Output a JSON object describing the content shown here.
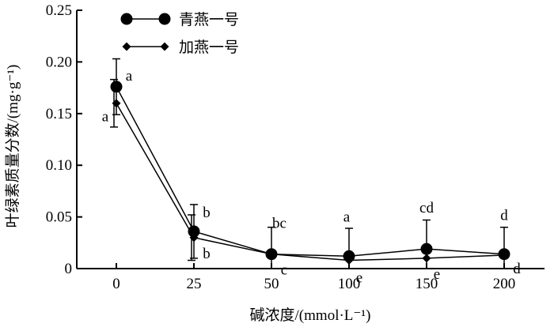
{
  "chart_data": {
    "type": "line",
    "xlabel": "碱浓度/(mmol·L⁻¹)",
    "ylabel": "叶绿素质量分数/(mg·g⁻¹)",
    "categories": [
      "0",
      "25",
      "50",
      "100",
      "150",
      "200"
    ],
    "ylim": [
      0,
      0.25
    ],
    "yticks": [
      "0",
      "0.05",
      "0.10",
      "0.15",
      "0.20",
      "0.25"
    ],
    "legend_position": "top-left",
    "series": [
      {
        "name": "青燕一号",
        "marker": "circle",
        "values": [
          0.176,
          0.036,
          0.014,
          0.012,
          0.019,
          0.014
        ],
        "errors": [
          0.027,
          0.026,
          0.026,
          0.027,
          0.028,
          0.026
        ],
        "labels": [
          "a",
          "b",
          "bc",
          "a",
          "cd",
          "d"
        ]
      },
      {
        "name": "加燕一号",
        "marker": "diamond",
        "values": [
          0.16,
          0.03,
          0.014,
          0.008,
          0.01,
          0.013
        ],
        "errors": [
          0.023,
          0.022,
          0.0,
          0.0,
          0.0,
          0.0
        ],
        "labels": [
          "a",
          "b",
          "c",
          "e",
          "e",
          "d"
        ]
      }
    ]
  }
}
